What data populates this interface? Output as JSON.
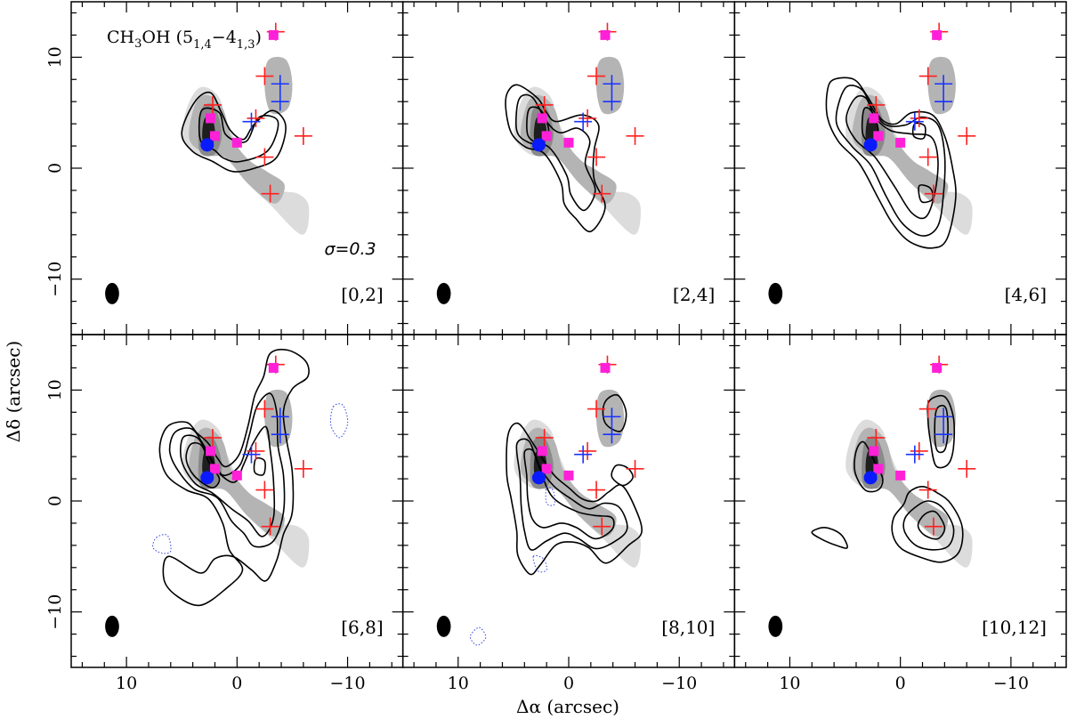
{
  "figure": {
    "molecule_label": "CH3OH (5_{1,4}−4_{1,3})",
    "sigma_label": "σ=0.3",
    "xlabel": "Δα (arcsec)",
    "ylabel": "Δδ (arcsec)",
    "colors": {
      "grey_fill": [
        "#dcdcdc",
        "#b4b4b4",
        "#8a8a8a",
        "#5a5a5a",
        "#1e1e1e"
      ],
      "red_cross": "#ff2020",
      "blue_cross": "#1a33ff",
      "magenta_square": "#ff20d8",
      "blue_dot": "#0a1aff",
      "dotted_contour": "#3344dd"
    }
  },
  "chart_data": {
    "type": "contour",
    "layout": "2 rows x 3 columns of channel maps",
    "x_axis": {
      "label": "Δα (arcsec)",
      "range": [
        15,
        -15
      ],
      "ticks": [
        10,
        0,
        -10
      ],
      "tick_labels": [
        "10",
        "0",
        "−10"
      ]
    },
    "y_axis": {
      "label": "Δδ (arcsec)",
      "range": [
        -15,
        15
      ],
      "ticks": [
        -10,
        0,
        10
      ],
      "tick_labels": [
        "−10",
        "0",
        "10"
      ]
    },
    "panels": [
      {
        "velocity_range": "[0,2]"
      },
      {
        "velocity_range": "[2,4]"
      },
      {
        "velocity_range": "[4,6]"
      },
      {
        "velocity_range": "[6,8]"
      },
      {
        "velocity_range": "[8,10]"
      },
      {
        "velocity_range": "[10,12]"
      }
    ],
    "markers": {
      "red_crosses": [
        [
          2.2,
          5.7
        ],
        [
          -2.5,
          8.3
        ],
        [
          -1.7,
          4.5
        ],
        [
          -6.0,
          2.9
        ],
        [
          -2.5,
          1.0
        ],
        [
          -3.0,
          -2.3
        ],
        [
          -3.5,
          12.3
        ]
      ],
      "blue_crosses": [
        [
          -3.9,
          7.6
        ],
        [
          -3.9,
          6.0
        ],
        [
          -1.3,
          4.2
        ]
      ],
      "magenta_squares": [
        [
          2.4,
          4.5
        ],
        [
          2.0,
          2.9
        ],
        [
          0.0,
          2.3
        ],
        [
          -3.3,
          12.0
        ]
      ],
      "blue_dot": [
        2.7,
        2.1
      ]
    },
    "beam": {
      "center": [
        11.3,
        -11.3
      ],
      "major": 1.75,
      "minor": 1.15
    }
  }
}
